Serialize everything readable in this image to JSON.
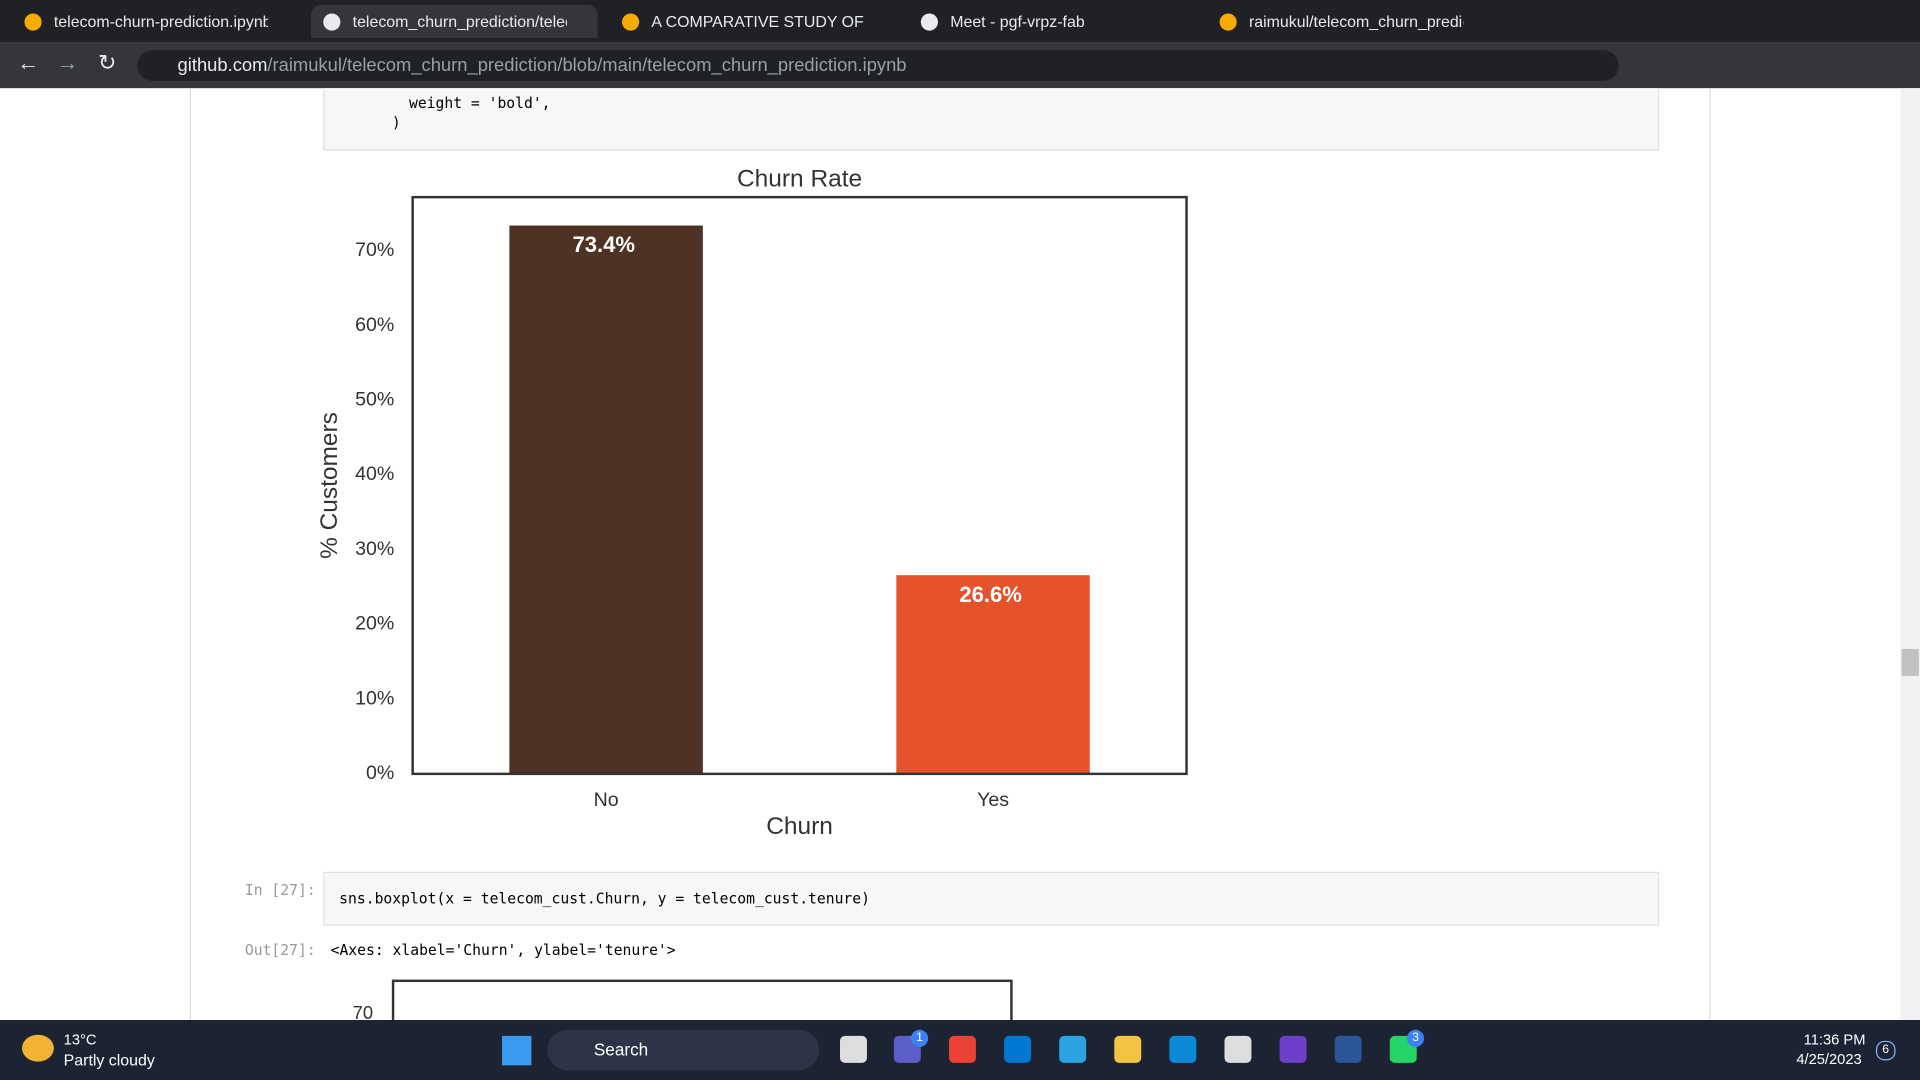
{
  "browser": {
    "tabs": [
      "telecom-churn-prediction.ipynb",
      "telecom_churn_prediction/teleco",
      "A COMPARATIVE STUDY OF MUL",
      "Meet - pgf-vrpz-fab",
      "raimukul/telecom_churn_predicti"
    ],
    "url_host": "github.com",
    "url_path": "/raimukul/telecom_churn_prediction/blob/main/telecom_churn_prediction.ipynb"
  },
  "notebook": {
    "code_top": [
      "weight = 'bold',",
      ")"
    ],
    "in_label": "In [27]:",
    "code": "sns.boxplot(x = telecom_cust.Churn, y = telecom_cust.tenure)",
    "out_label": "Out[27]:",
    "output": "<Axes: xlabel='Churn', ylabel='tenure'>",
    "next_plot_tick": "70"
  },
  "chart_data": {
    "type": "bar",
    "title": "Churn Rate",
    "x_label": "Churn",
    "y_label": "% Customers",
    "categories": [
      "No",
      "Yes"
    ],
    "values": [
      73.4,
      26.6
    ],
    "value_labels": [
      "73.4%",
      "26.6%"
    ],
    "colors": [
      "#4e3324",
      "#e5532c"
    ],
    "ylim": [
      0,
      77.2
    ],
    "yticks": [
      {
        "value": 0,
        "label": "0%"
      },
      {
        "value": 10,
        "label": "10%"
      },
      {
        "value": 20,
        "label": "20%"
      },
      {
        "value": 30,
        "label": "30%"
      },
      {
        "value": 40,
        "label": "40%"
      },
      {
        "value": 50,
        "label": "50%"
      },
      {
        "value": 60,
        "label": "60%"
      },
      {
        "value": 70,
        "label": "70%"
      }
    ]
  },
  "taskbar": {
    "temperature": "13°C",
    "weather": "Partly cloudy",
    "search": "Search",
    "time": "11:36 PM",
    "date": "4/25/2023",
    "badges": [
      "1",
      "3",
      "6"
    ]
  }
}
